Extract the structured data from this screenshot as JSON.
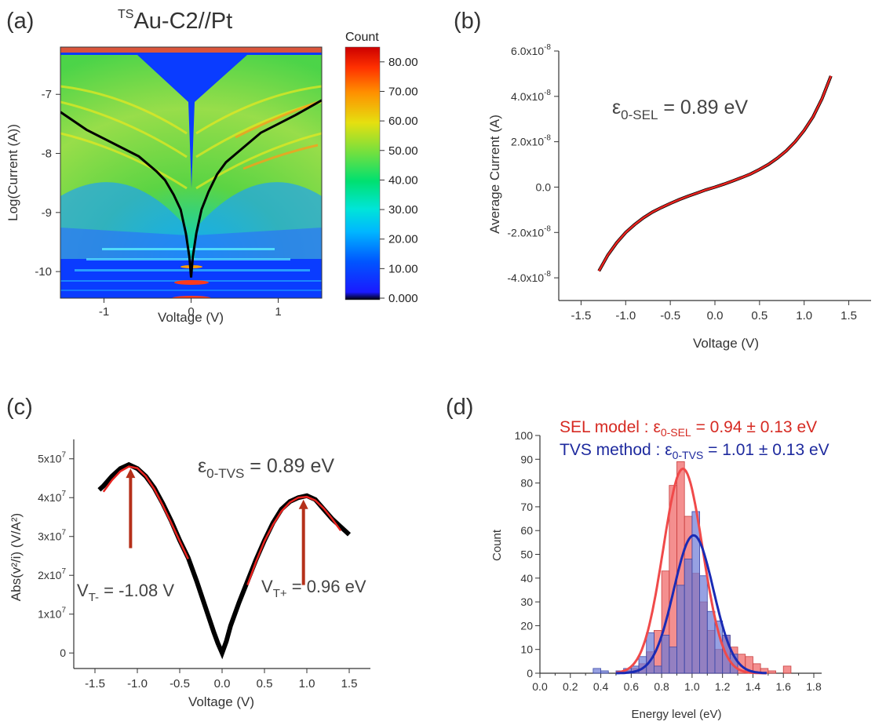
{
  "panels": {
    "a": {
      "letter": "(a)",
      "title_sup": "TS",
      "title_main": "Au-C2//Pt",
      "xlabel": "Voltage (V)",
      "ylabel": "Log(Current (A))",
      "colorbar_title": "Count",
      "colorbar_ticks": [
        "80.00",
        "70.00",
        "60.00",
        "50.00",
        "40.00",
        "30.00",
        "20.00",
        "10.00",
        "0.000"
      ]
    },
    "b": {
      "letter": "(b)",
      "annotation_prefix": "ε",
      "annotation_sub": "0-SEL",
      "annotation_value": " = 0.89 eV"
    },
    "c": {
      "letter": "(c)",
      "annotation_prefix": "ε",
      "annotation_sub": "0-TVS",
      "annotation_value": " = 0.89 eV",
      "vtminus_prefix": "V",
      "vtminus_sub": "T-",
      "vtminus_value": " = -1.08 V",
      "vtplus_prefix": "V",
      "vtplus_sub": "T+",
      "vtplus_value": " = 0.96 eV"
    },
    "d": {
      "letter": "(d)",
      "legend_sel_text": "SEL model : ε",
      "legend_sel_sub": "0-SEL",
      "legend_sel_value": " = 0.94 ± 0.13 eV",
      "legend_tvs_text": "TVS method : ε",
      "legend_tvs_sub": "0-TVS",
      "legend_tvs_value": " = 1.01 ± 0.13 eV"
    }
  },
  "colors": {
    "red_fit": "#e8231f",
    "hist_red": "#f06a6a",
    "hist_blue": "#6b79d6",
    "blue_fit": "#1a2bb5",
    "sel_text": "#d62a22",
    "tvs_text": "#1e2a9e",
    "arrow": "#b5301a",
    "axis_text": "#333333"
  },
  "chart_data": [
    {
      "type": "heatmap",
      "panel": "a",
      "xlabel": "Voltage (V)",
      "ylabel": "Log(Current (A))",
      "xlim": [
        -1.5,
        1.5
      ],
      "ylim": [
        -10.45,
        -6.2
      ],
      "xticks": [
        -1,
        0,
        1
      ],
      "yticks": [
        -10,
        -9,
        -8,
        -7
      ],
      "colorbar": {
        "title": "Count",
        "min": 0,
        "max": 85
      },
      "average_curve": {
        "x": [
          -1.5,
          -1.2,
          -1.0,
          -0.8,
          -0.6,
          -0.4,
          -0.3,
          -0.2,
          -0.12,
          -0.06,
          -0.02,
          0.0,
          0.02,
          0.06,
          0.12,
          0.2,
          0.3,
          0.4,
          0.6,
          0.8,
          1.0,
          1.2,
          1.5
        ],
        "y": [
          -7.3,
          -7.6,
          -7.75,
          -7.9,
          -8.05,
          -8.3,
          -8.45,
          -8.7,
          -8.95,
          -9.35,
          -9.75,
          -10.1,
          -9.75,
          -9.35,
          -8.95,
          -8.65,
          -8.35,
          -8.15,
          -7.9,
          -7.65,
          -7.5,
          -7.35,
          -7.1
        ]
      }
    },
    {
      "type": "line",
      "panel": "b",
      "xlabel": "Voltage (V)",
      "ylabel": "Average Current (A)",
      "xlim": [
        -1.75,
        1.75
      ],
      "ylim": [
        -5e-08,
        6e-08
      ],
      "xticks": [
        -1.5,
        -1.0,
        -0.5,
        0.0,
        0.5,
        1.0,
        1.5
      ],
      "xticklabels": [
        "-1.5",
        "-1.0",
        "-0.5",
        "0.0",
        "0.5",
        "1.0",
        "1.5"
      ],
      "yticks": [
        -4e-08,
        -2e-08,
        0,
        2e-08,
        4e-08,
        6e-08
      ],
      "ytick_mant": [
        "-4.0x10",
        "-2.0x10",
        "0.0",
        "2.0x10",
        "4.0x10",
        "6.0x10"
      ],
      "ytick_exp": [
        "-8",
        "-8",
        "",
        "-8",
        "-8",
        "-8"
      ],
      "series": [
        {
          "x": [
            -1.3,
            -1.2,
            -1.1,
            -1.0,
            -0.9,
            -0.8,
            -0.7,
            -0.6,
            -0.5,
            -0.4,
            -0.3,
            -0.2,
            -0.1,
            0.0,
            0.1,
            0.2,
            0.3,
            0.4,
            0.5,
            0.6,
            0.7,
            0.8,
            0.9,
            1.0,
            1.1,
            1.2,
            1.3
          ],
          "y": [
            -3.7e-08,
            -3e-08,
            -2.45e-08,
            -2e-08,
            -1.65e-08,
            -1.35e-08,
            -1.1e-08,
            -9e-09,
            -7.2e-09,
            -5.5e-09,
            -4e-09,
            -2.6e-09,
            -1.2e-09,
            0.0,
            1.3e-09,
            2.7e-09,
            4.2e-09,
            5.8e-09,
            7.8e-09,
            1e-08,
            1.28e-08,
            1.6e-08,
            2e-08,
            2.5e-08,
            3.1e-08,
            3.9e-08,
            4.9e-08
          ]
        }
      ]
    },
    {
      "type": "line",
      "panel": "c",
      "xlabel": "Voltage (V)",
      "ylabel": "Abs(v²/i) (V/A²)",
      "xlim": [
        -1.75,
        1.75
      ],
      "ylim": [
        -4000000.0,
        55000000.0
      ],
      "xticks": [
        -1.5,
        -1.0,
        -0.5,
        0.0,
        0.5,
        1.0,
        1.5
      ],
      "xticklabels": [
        "-1.5",
        "-1.0",
        "-0.5",
        "0.0",
        "0.5",
        "1.0",
        "1.5"
      ],
      "yticks": [
        0,
        10000000.0,
        20000000.0,
        30000000.0,
        40000000.0,
        50000000.0
      ],
      "ytick_mant": [
        "0",
        "1x10",
        "2x10",
        "3x10",
        "4x10",
        "5x10"
      ],
      "ytick_exp": [
        "",
        "7",
        "7",
        "7",
        "7",
        "7"
      ],
      "series": [
        {
          "x": [
            -1.45,
            -1.4,
            -1.3,
            -1.2,
            -1.1,
            -1.0,
            -0.9,
            -0.8,
            -0.7,
            -0.6,
            -0.5,
            -0.4,
            -0.3,
            -0.2,
            -0.1,
            -0.05,
            0.0,
            0.05,
            0.1,
            0.2,
            0.3,
            0.4,
            0.5,
            0.6,
            0.7,
            0.8,
            0.9,
            1.0,
            1.1,
            1.2,
            1.3,
            1.4,
            1.5
          ],
          "y": [
            42000000.0,
            43000000.0,
            45500000.0,
            47500000.0,
            48500000.0,
            47500000.0,
            45500000.0,
            42500000.0,
            38500000.0,
            34000000.0,
            29000000.0,
            24500000.0,
            18500000.0,
            12000000.0,
            5500000.0,
            2500000.0,
            0.0,
            3000000.0,
            7000000.0,
            13000000.0,
            18500000.0,
            24000000.0,
            29000000.0,
            33500000.0,
            37000000.0,
            39000000.0,
            40000000.0,
            40500000.0,
            39500000.0,
            37000000.0,
            34500000.0,
            32500000.0,
            30500000.0
          ]
        }
      ],
      "fits": [
        {
          "x": [
            -1.4,
            -1.3,
            -1.2,
            -1.1,
            -1.0,
            -0.9,
            -0.8,
            -0.7,
            -0.6,
            -0.5,
            -0.4
          ],
          "y": [
            41500000.0,
            44500000.0,
            46800000.0,
            48000000.0,
            47600000.0,
            45500000.0,
            42200000.0,
            38000000.0,
            33500000.0,
            28800000.0,
            24200000.0
          ]
        },
        {
          "x": [
            0.3,
            0.4,
            0.5,
            0.6,
            0.7,
            0.8,
            0.9,
            1.0,
            1.1,
            1.2,
            1.3,
            1.4
          ],
          "y": [
            17500000.0,
            23500000.0,
            28800000.0,
            33000000.0,
            36500000.0,
            38800000.0,
            40000000.0,
            40200000.0,
            39300000.0,
            37200000.0,
            34500000.0,
            31500000.0
          ]
        }
      ],
      "arrows": [
        {
          "x": -1.08,
          "y_from": 27000000.0,
          "y_to": 47500000.0
        },
        {
          "x": 0.96,
          "y_from": 17500000.0,
          "y_to": 39500000.0
        }
      ]
    },
    {
      "type": "bar",
      "panel": "d",
      "xlabel": "Energy level (eV)",
      "ylabel": "Count",
      "xlim": [
        0.0,
        1.8
      ],
      "ylim": [
        0,
        100
      ],
      "xticks": [
        0.0,
        0.1,
        0.2,
        0.3,
        0.4,
        0.5,
        0.6,
        0.7,
        0.8,
        0.9,
        1.0,
        1.1,
        1.2,
        1.3,
        1.4,
        1.5,
        1.6,
        1.7,
        1.8
      ],
      "xticklabels": [
        "0.0",
        "0.2",
        "0.4",
        "0.6",
        "0.8",
        "1.0",
        "1.2",
        "1.4",
        "1.6",
        "1.8"
      ],
      "yticks": [
        0,
        10,
        20,
        30,
        40,
        50,
        60,
        70,
        80,
        90,
        100
      ],
      "bin_width": 0.05,
      "series": [
        {
          "name": "SEL model",
          "bin_left": [
            0.5,
            0.55,
            0.6,
            0.65,
            0.7,
            0.75,
            0.8,
            0.85,
            0.9,
            0.95,
            1.0,
            1.05,
            1.1,
            1.15,
            1.2,
            1.25,
            1.3,
            1.35,
            1.4,
            1.45,
            1.5,
            1.55,
            1.6,
            1.65,
            1.7
          ],
          "values": [
            0,
            1,
            2,
            4,
            9,
            18,
            43,
            79,
            89,
            66,
            42,
            30,
            18,
            10,
            16,
            11,
            8,
            7,
            4,
            2,
            1,
            0,
            3,
            0,
            0
          ]
        },
        {
          "name": "TVS method",
          "bin_left": [
            0.35,
            0.4,
            0.45,
            0.5,
            0.55,
            0.6,
            0.65,
            0.7,
            0.75,
            0.8,
            0.85,
            0.9,
            0.95,
            1.0,
            1.05,
            1.1,
            1.15,
            1.2,
            1.25
          ],
          "values": [
            2,
            1,
            0,
            1,
            2,
            3,
            7,
            17,
            3,
            16,
            11,
            37,
            48,
            68,
            41,
            26,
            22,
            16,
            8
          ]
        }
      ],
      "fit_sel": {
        "mean": 0.94,
        "sigma": 0.13,
        "amp": 86
      },
      "fit_tvs": {
        "mean": 1.01,
        "sigma": 0.13,
        "amp": 58
      }
    }
  ]
}
